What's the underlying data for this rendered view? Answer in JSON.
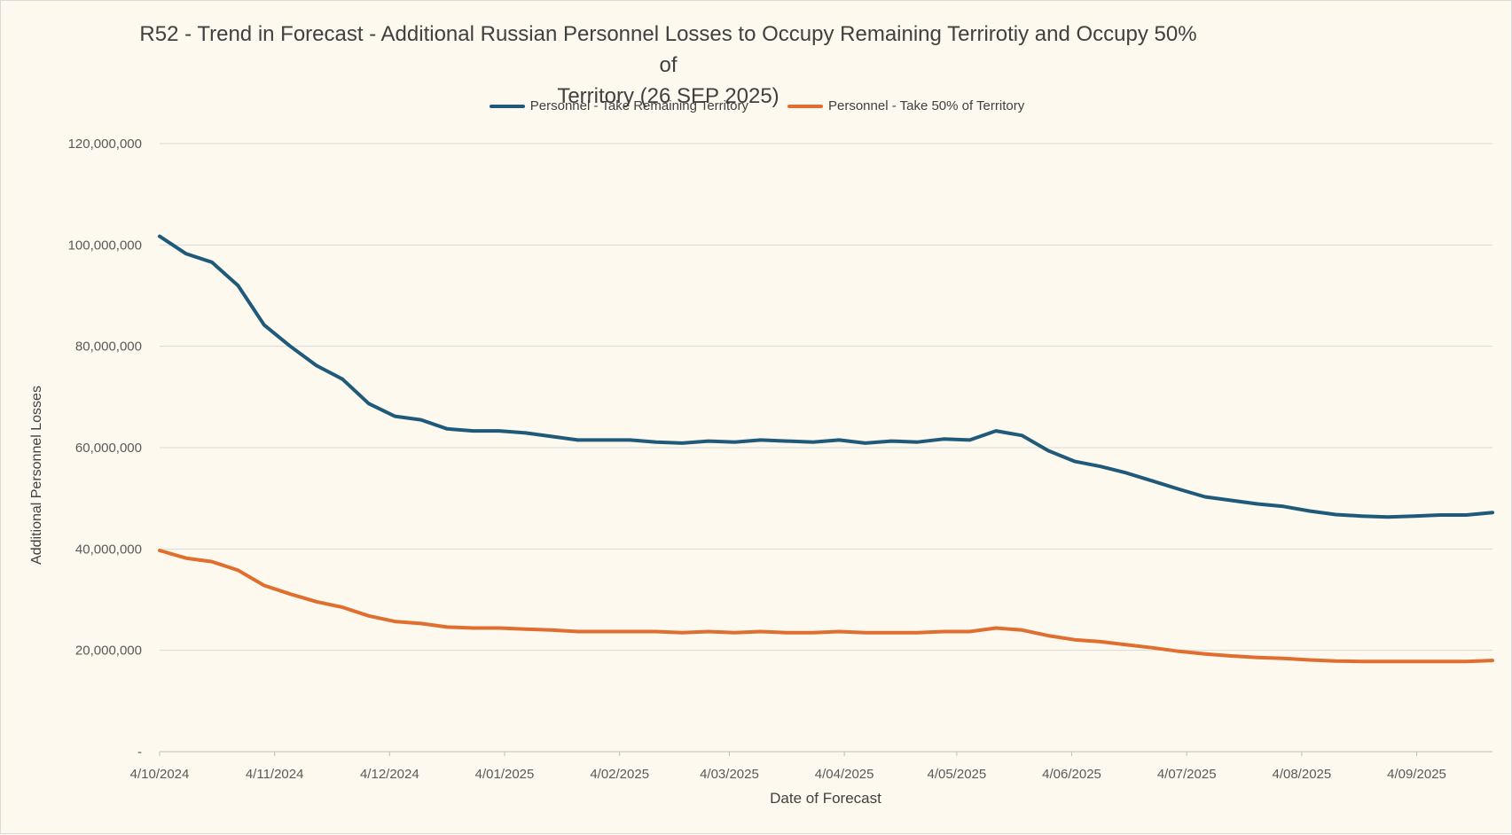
{
  "chart_data": {
    "type": "line",
    "title_line1": "R52 - Trend in Forecast - Additional Russian Personnel Losses to Occupy Remaining Terrirotiy and Occupy 50% of",
    "title_line2": "Territory  (26 SEP 2025)",
    "xlabel": "Date of Forecast",
    "ylabel": "Additional Personnel Losses",
    "ylim": [
      0,
      120000000
    ],
    "y_ticks": [
      0,
      20000000,
      40000000,
      60000000,
      80000000,
      100000000,
      120000000
    ],
    "y_tick_labels": [
      "-",
      "20,000,000",
      "40,000,000",
      "60,000,000",
      "80,000,000",
      "100,000,000",
      "120,000,000"
    ],
    "x_tick_labels": [
      "4/10/2024",
      "4/11/2024",
      "4/12/2024",
      "4/01/2025",
      "4/02/2025",
      "4/03/2025",
      "4/04/2025",
      "4/05/2025",
      "4/06/2025",
      "4/07/2025",
      "4/08/2025",
      "4/09/2025"
    ],
    "x_tick_positions": [
      0,
      4.4,
      8.8,
      13.2,
      17.6,
      21.8,
      26.2,
      30.5,
      34.9,
      39.3,
      43.7,
      48.1
    ],
    "x_count": 52,
    "grid": true,
    "legend_position": "top",
    "series": [
      {
        "name": "Personnel - Take Remaining Territory",
        "color": "#1f5a7a",
        "values": [
          101700000,
          98300000,
          96600000,
          92000000,
          84200000,
          80000000,
          76200000,
          73500000,
          68700000,
          66200000,
          65500000,
          63700000,
          63300000,
          63300000,
          62900000,
          62200000,
          61500000,
          61500000,
          61500000,
          61100000,
          60900000,
          61300000,
          61100000,
          61500000,
          61300000,
          61100000,
          61500000,
          60900000,
          61300000,
          61100000,
          61700000,
          61500000,
          63300000,
          62400000,
          59400000,
          57300000,
          56300000,
          55000000,
          53400000,
          51800000,
          50300000,
          49600000,
          48900000,
          48400000,
          47500000,
          46800000,
          46500000,
          46300000,
          46500000,
          46700000,
          46700000,
          47200000
        ]
      },
      {
        "name": "Personnel - Take 50% of Territory",
        "color": "#e06e2f",
        "values": [
          39700000,
          38200000,
          37500000,
          35800000,
          32800000,
          31100000,
          29600000,
          28500000,
          26800000,
          25700000,
          25300000,
          24600000,
          24400000,
          24400000,
          24200000,
          24000000,
          23700000,
          23700000,
          23700000,
          23700000,
          23500000,
          23700000,
          23500000,
          23700000,
          23500000,
          23500000,
          23700000,
          23500000,
          23500000,
          23500000,
          23700000,
          23700000,
          24400000,
          24000000,
          22900000,
          22100000,
          21700000,
          21100000,
          20500000,
          19800000,
          19300000,
          18900000,
          18600000,
          18400000,
          18100000,
          17900000,
          17800000,
          17800000,
          17800000,
          17800000,
          17800000,
          18000000
        ]
      }
    ]
  }
}
